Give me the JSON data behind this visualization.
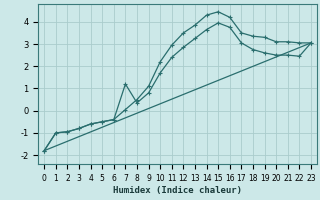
{
  "xlabel": "Humidex (Indice chaleur)",
  "background_color": "#cce8e8",
  "grid_color": "#aacccc",
  "line_color": "#2a6e6e",
  "xlim": [
    -0.5,
    23.5
  ],
  "ylim": [
    -2.4,
    4.8
  ],
  "xticks": [
    0,
    1,
    2,
    3,
    4,
    5,
    6,
    7,
    8,
    9,
    10,
    11,
    12,
    13,
    14,
    15,
    16,
    17,
    18,
    19,
    20,
    21,
    22,
    23
  ],
  "yticks": [
    -2,
    -1,
    0,
    1,
    2,
    3,
    4
  ],
  "line1_x": [
    0,
    1,
    2,
    3,
    4,
    5,
    6,
    7,
    8,
    9,
    10,
    11,
    12,
    13,
    14,
    15,
    16,
    17,
    18,
    19,
    20,
    21,
    22,
    23
  ],
  "line1_y": [
    -1.8,
    -1.0,
    -0.95,
    -0.8,
    -0.6,
    -0.5,
    -0.4,
    0.05,
    0.5,
    1.1,
    2.2,
    2.95,
    3.5,
    3.85,
    4.3,
    4.45,
    4.2,
    3.5,
    3.35,
    3.3,
    3.1,
    3.1,
    3.05,
    3.05
  ],
  "line2_x": [
    0,
    1,
    2,
    3,
    4,
    5,
    6,
    7,
    8,
    9,
    10,
    11,
    12,
    13,
    14,
    15,
    16,
    17,
    18,
    19,
    20,
    21,
    22,
    23
  ],
  "line2_y": [
    -1.8,
    -1.0,
    -0.95,
    -0.8,
    -0.6,
    -0.5,
    -0.4,
    1.2,
    0.35,
    0.8,
    1.7,
    2.4,
    2.85,
    3.25,
    3.65,
    3.95,
    3.75,
    3.05,
    2.75,
    2.6,
    2.5,
    2.5,
    2.45,
    3.05
  ],
  "line3_x": [
    0,
    23
  ],
  "line3_y": [
    -1.8,
    3.05
  ],
  "tick_fontsize": 5.5,
  "label_fontsize": 6.5
}
